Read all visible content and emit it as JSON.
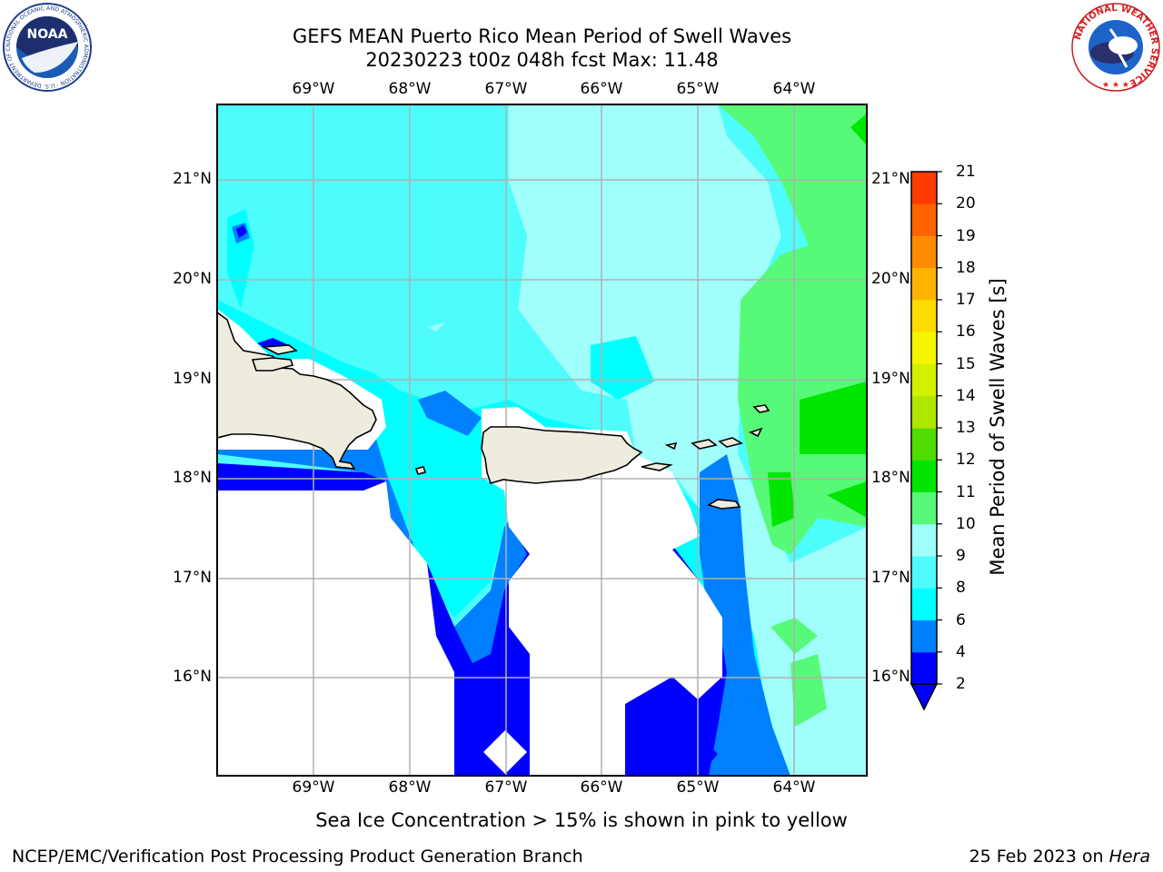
{
  "header": {
    "title_line1": "GEFS MEAN Puerto Rico Mean Period of Swell Waves",
    "title_line2": "20230223 t00z 048h fcst   Max: 11.48",
    "left_logo": "NOAA",
    "left_logo_ring_text": "NATIONAL OCEANIC AND ATMOSPHERIC ADMINISTRATION · U.S. DEPARTMENT OF COMMERCE",
    "right_logo_ring_text": "NATIONAL WEATHER SERVICE"
  },
  "map": {
    "lon_labels": [
      "69°W",
      "68°W",
      "67°W",
      "66°W",
      "65°W",
      "64°W"
    ],
    "lat_labels": [
      "21°N",
      "20°N",
      "19°N",
      "18°N",
      "17°N",
      "16°N"
    ],
    "land_color": "#eeecdf",
    "grid_color": "#b0b0b0"
  },
  "colorbar": {
    "title": "Mean Period of Swell Waves [s]",
    "levels": [
      "2",
      "4",
      "6",
      "8",
      "9",
      "10",
      "11",
      "12",
      "13",
      "14",
      "15",
      "16",
      "17",
      "18",
      "19",
      "20",
      "21"
    ],
    "colors": [
      "#0000ff",
      "#0080ff",
      "#00ffff",
      "#4ffcfc",
      "#a0fffb",
      "#56fa78",
      "#00e600",
      "#4fdc00",
      "#b0e600",
      "#d2f000",
      "#f5f500",
      "#ffdc00",
      "#ffb400",
      "#ff8c00",
      "#ff6400",
      "#ff3c00",
      "#ff0000"
    ],
    "extend_color": "#0000ff"
  },
  "footer": {
    "note": "Sea Ice Concentration > 15% is shown in pink to yellow",
    "credit": "NCEP/EMC/Verification Post Processing Product Generation Branch",
    "date": "25 Feb 2023 on ",
    "machine": "Hera"
  }
}
